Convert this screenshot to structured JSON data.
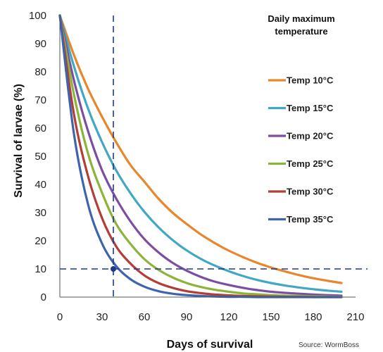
{
  "chart_data": {
    "type": "line",
    "title": "",
    "xlabel": "Days of survival",
    "ylabel": "Survival of larvae (%)",
    "xlim": [
      0,
      210
    ],
    "ylim": [
      0,
      100
    ],
    "xticks": [
      0,
      30,
      60,
      90,
      120,
      150,
      180,
      210
    ],
    "yticks": [
      0,
      10,
      20,
      30,
      40,
      50,
      60,
      70,
      80,
      90,
      100
    ],
    "grid": false,
    "legend": {
      "title_line1": "Daily maximum",
      "title_line2": "temperature",
      "position": "top-right"
    },
    "x": [
      0,
      10,
      20,
      30,
      40,
      50,
      60,
      70,
      80,
      90,
      100,
      110,
      120,
      130,
      140,
      150,
      160,
      170,
      180,
      190,
      200
    ],
    "series": [
      {
        "name": "Temp 10°C",
        "color": "#e8862c",
        "values": [
          100,
          86,
          74,
          64,
          55,
          47,
          41,
          35,
          30,
          26,
          22.3,
          19.2,
          16.5,
          14.2,
          12.2,
          10.5,
          9.1,
          7.8,
          6.7,
          5.8,
          5.0
        ]
      },
      {
        "name": "Temp 15°C",
        "color": "#42a7c4",
        "values": [
          100,
          82,
          67,
          55,
          45,
          37,
          30.3,
          24.8,
          20.3,
          16.6,
          13.6,
          11.2,
          9.2,
          7.5,
          6.1,
          5.0,
          4.1,
          3.4,
          2.8,
          2.3,
          1.9
        ]
      },
      {
        "name": "Temp 20°C",
        "color": "#7b4ea3",
        "values": [
          100,
          77,
          59,
          45,
          35,
          27,
          20.6,
          15.9,
          12.2,
          9.4,
          7.2,
          5.5,
          4.3,
          3.3,
          2.5,
          1.9,
          1.5,
          1.2,
          0.9,
          0.7,
          0.5
        ]
      },
      {
        "name": "Temp 25°C",
        "color": "#8cb33a",
        "values": [
          100,
          72,
          51,
          37,
          26,
          19,
          13.5,
          9.7,
          7.0,
          5.0,
          3.6,
          2.6,
          1.9,
          1.3,
          1.0,
          0.7,
          0.5,
          0.4,
          0.3,
          0.2,
          0.1
        ]
      },
      {
        "name": "Temp 30°C",
        "color": "#b13e37",
        "values": [
          100,
          65,
          43,
          28,
          18,
          12,
          7.7,
          5.0,
          3.3,
          2.1,
          1.4,
          0.9,
          0.6,
          0.4,
          0.3,
          0.2,
          0.1,
          0.1,
          0.0,
          0.0,
          0.0
        ]
      },
      {
        "name": "Temp 35°C",
        "color": "#3d64ad",
        "values": [
          100,
          58,
          33,
          19,
          11,
          6.4,
          3.7,
          2.1,
          1.2,
          0.7,
          0.4,
          0.2,
          0.1,
          0.1,
          0.0,
          0.0,
          0.0,
          0.0,
          0.0,
          0.0,
          0.0
        ]
      }
    ],
    "reference_lines": {
      "x": 38,
      "y": 10,
      "color": "#1f3a8a",
      "style": "dashed"
    },
    "marker": {
      "x": 38,
      "y": 10
    }
  },
  "source_note": "Source: WormBoss"
}
